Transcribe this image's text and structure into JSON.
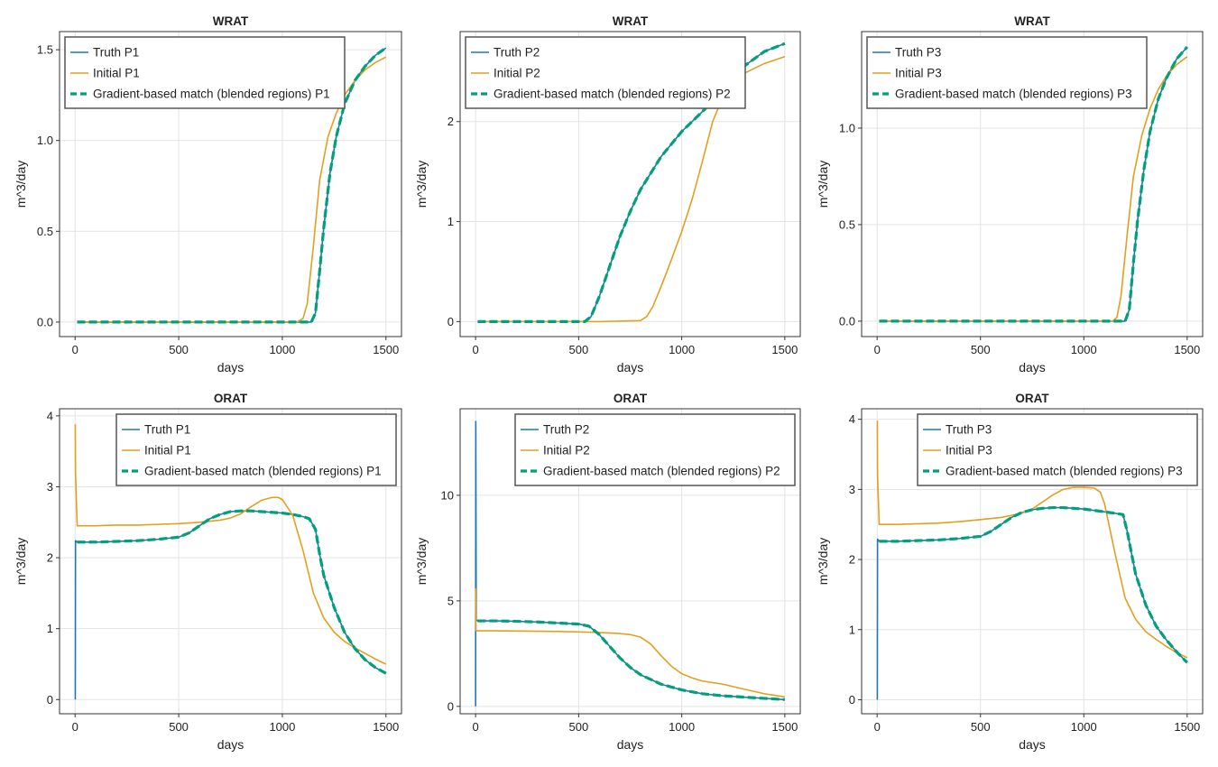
{
  "colors": {
    "truth": "#1f77b4",
    "initial": "#e1a01e",
    "match": "#00a078",
    "grid": "#e3e3e3",
    "frame": "#333333",
    "legend_border": "#555555"
  },
  "chart_data": [
    {
      "type": "line",
      "title": "WRAT",
      "xlabel": "days",
      "ylabel": "m^3/day",
      "xlim": [
        -75,
        1575
      ],
      "ylim": [
        -0.08,
        1.6
      ],
      "xticks": [
        0,
        500,
        1000,
        1500
      ],
      "yticks": [
        0.0,
        0.5,
        1.0,
        1.5
      ],
      "ytick_labels": [
        "0.0",
        "0.5",
        "1.0",
        "1.5"
      ],
      "grid": true,
      "legend_position": "top-left",
      "series": [
        {
          "name": "Truth P1",
          "role": "truth",
          "x": [
            10,
            200,
            400,
            600,
            800,
            1000,
            1100,
            1140,
            1160,
            1180,
            1200,
            1230,
            1260,
            1300,
            1350,
            1400,
            1450,
            1500
          ],
          "y": [
            0,
            0,
            0,
            0,
            0,
            0,
            0,
            0,
            0.05,
            0.28,
            0.52,
            0.82,
            1.02,
            1.2,
            1.33,
            1.41,
            1.47,
            1.51
          ]
        },
        {
          "name": "Initial P1",
          "role": "initial",
          "x": [
            10,
            200,
            400,
            600,
            800,
            1000,
            1070,
            1100,
            1120,
            1150,
            1180,
            1220,
            1260,
            1300,
            1350,
            1400,
            1450,
            1500
          ],
          "y": [
            0,
            0,
            0,
            0,
            0,
            0,
            0,
            0.02,
            0.1,
            0.42,
            0.78,
            1.02,
            1.15,
            1.25,
            1.33,
            1.39,
            1.43,
            1.46
          ]
        },
        {
          "name": "Gradient-based match (blended regions) P1",
          "role": "match",
          "x": [
            10,
            200,
            400,
            600,
            800,
            1000,
            1100,
            1140,
            1160,
            1180,
            1200,
            1230,
            1260,
            1300,
            1350,
            1400,
            1450,
            1500
          ],
          "y": [
            0,
            0,
            0,
            0,
            0,
            0,
            0,
            0,
            0.05,
            0.28,
            0.52,
            0.82,
            1.02,
            1.2,
            1.33,
            1.41,
            1.47,
            1.51
          ]
        }
      ]
    },
    {
      "type": "line",
      "title": "WRAT",
      "xlabel": "days",
      "ylabel": "m^3/day",
      "xlim": [
        -75,
        1575
      ],
      "ylim": [
        -0.15,
        2.9
      ],
      "xticks": [
        0,
        500,
        1000,
        1500
      ],
      "yticks": [
        0,
        1,
        2
      ],
      "ytick_labels": [
        "0",
        "1",
        "2"
      ],
      "grid": true,
      "legend_position": "top-left",
      "series": [
        {
          "name": "Truth P2",
          "role": "truth",
          "x": [
            10,
            200,
            400,
            530,
            560,
            600,
            650,
            700,
            750,
            800,
            900,
            1000,
            1100,
            1200,
            1300,
            1400,
            1500
          ],
          "y": [
            0,
            0,
            0,
            0,
            0.05,
            0.25,
            0.55,
            0.85,
            1.1,
            1.32,
            1.65,
            1.9,
            2.1,
            2.3,
            2.55,
            2.7,
            2.78
          ]
        },
        {
          "name": "Initial P2",
          "role": "initial",
          "x": [
            10,
            200,
            400,
            600,
            800,
            830,
            860,
            900,
            950,
            1000,
            1050,
            1100,
            1150,
            1200,
            1250,
            1300,
            1400,
            1500
          ],
          "y": [
            0,
            0,
            0,
            0,
            0.01,
            0.05,
            0.15,
            0.35,
            0.62,
            0.9,
            1.22,
            1.6,
            2.0,
            2.25,
            2.4,
            2.48,
            2.58,
            2.65
          ]
        },
        {
          "name": "Gradient-based match (blended regions) P2",
          "role": "match",
          "x": [
            10,
            200,
            400,
            530,
            560,
            600,
            650,
            700,
            750,
            800,
            900,
            1000,
            1100,
            1200,
            1300,
            1400,
            1500
          ],
          "y": [
            0,
            0,
            0,
            0,
            0.05,
            0.25,
            0.55,
            0.85,
            1.1,
            1.32,
            1.65,
            1.9,
            2.1,
            2.3,
            2.55,
            2.7,
            2.78
          ]
        }
      ]
    },
    {
      "type": "line",
      "title": "WRAT",
      "xlabel": "days",
      "ylabel": "m^3/day",
      "xlim": [
        -75,
        1575
      ],
      "ylim": [
        -0.08,
        1.5
      ],
      "xticks": [
        0,
        500,
        1000,
        1500
      ],
      "yticks": [
        0.0,
        0.5,
        1.0
      ],
      "ytick_labels": [
        "0.0",
        "0.5",
        "1.0"
      ],
      "grid": true,
      "legend_position": "top-left",
      "series": [
        {
          "name": "Truth P3",
          "role": "truth",
          "x": [
            10,
            200,
            400,
            600,
            800,
            1000,
            1150,
            1200,
            1220,
            1240,
            1260,
            1290,
            1320,
            1360,
            1400,
            1450,
            1500
          ],
          "y": [
            0,
            0,
            0,
            0,
            0,
            0,
            0,
            0,
            0.06,
            0.3,
            0.52,
            0.78,
            0.98,
            1.15,
            1.26,
            1.36,
            1.42
          ]
        },
        {
          "name": "Initial P3",
          "role": "initial",
          "x": [
            10,
            200,
            400,
            600,
            800,
            1000,
            1140,
            1160,
            1180,
            1210,
            1240,
            1280,
            1320,
            1360,
            1400,
            1450,
            1500
          ],
          "y": [
            0,
            0,
            0,
            0,
            0,
            0,
            0,
            0.02,
            0.13,
            0.45,
            0.75,
            0.96,
            1.1,
            1.2,
            1.27,
            1.33,
            1.37
          ]
        },
        {
          "name": "Gradient-based match (blended regions) P3",
          "role": "match",
          "x": [
            10,
            200,
            400,
            600,
            800,
            1000,
            1150,
            1200,
            1220,
            1240,
            1260,
            1290,
            1320,
            1360,
            1400,
            1450,
            1500
          ],
          "y": [
            0,
            0,
            0,
            0,
            0,
            0,
            0,
            0,
            0.06,
            0.3,
            0.52,
            0.78,
            0.98,
            1.15,
            1.26,
            1.36,
            1.42
          ]
        }
      ]
    },
    {
      "type": "line",
      "title": "ORAT",
      "xlabel": "days",
      "ylabel": "m^3/day",
      "xlim": [
        -75,
        1575
      ],
      "ylim": [
        -0.2,
        4.1
      ],
      "xticks": [
        0,
        500,
        1000,
        1500
      ],
      "yticks": [
        0,
        1,
        2,
        3,
        4
      ],
      "ytick_labels": [
        "0",
        "1",
        "2",
        "3",
        "4"
      ],
      "grid": true,
      "legend_position": "top-right",
      "series": [
        {
          "name": "Truth P1",
          "role": "truth",
          "x": [
            1,
            2,
            10,
            100,
            200,
            300,
            400,
            500,
            550,
            600,
            650,
            700,
            750,
            800,
            850,
            900,
            950,
            1000,
            1050,
            1100,
            1130,
            1160,
            1180,
            1200,
            1250,
            1300,
            1350,
            1400,
            1450,
            1500
          ],
          "y": [
            0,
            2.24,
            2.22,
            2.22,
            2.23,
            2.24,
            2.26,
            2.29,
            2.35,
            2.45,
            2.55,
            2.61,
            2.65,
            2.66,
            2.66,
            2.65,
            2.64,
            2.63,
            2.61,
            2.58,
            2.55,
            2.4,
            2.05,
            1.75,
            1.3,
            0.95,
            0.72,
            0.56,
            0.45,
            0.37
          ]
        },
        {
          "name": "Initial P1",
          "role": "initial",
          "x": [
            1,
            2,
            10,
            100,
            200,
            300,
            400,
            500,
            600,
            700,
            750,
            800,
            850,
            900,
            950,
            980,
            1000,
            1050,
            1100,
            1150,
            1200,
            1250,
            1300,
            1350,
            1400,
            1450,
            1500
          ],
          "y": [
            3.88,
            3.2,
            2.45,
            2.45,
            2.46,
            2.46,
            2.47,
            2.48,
            2.5,
            2.53,
            2.56,
            2.62,
            2.72,
            2.81,
            2.85,
            2.85,
            2.82,
            2.6,
            2.1,
            1.5,
            1.15,
            0.95,
            0.82,
            0.73,
            0.65,
            0.57,
            0.5
          ]
        },
        {
          "name": "Gradient-based match (blended regions) P1",
          "role": "match",
          "x": [
            10,
            100,
            200,
            300,
            400,
            500,
            550,
            600,
            650,
            700,
            750,
            800,
            850,
            900,
            950,
            1000,
            1050,
            1100,
            1130,
            1160,
            1180,
            1200,
            1250,
            1300,
            1350,
            1400,
            1450,
            1500
          ],
          "y": [
            2.22,
            2.22,
            2.23,
            2.24,
            2.26,
            2.29,
            2.35,
            2.45,
            2.55,
            2.61,
            2.65,
            2.66,
            2.66,
            2.65,
            2.64,
            2.63,
            2.61,
            2.58,
            2.55,
            2.4,
            2.05,
            1.75,
            1.3,
            0.95,
            0.72,
            0.56,
            0.45,
            0.37
          ]
        }
      ]
    },
    {
      "type": "line",
      "title": "ORAT",
      "xlabel": "days",
      "ylabel": "m^3/day",
      "xlim": [
        -75,
        1575
      ],
      "ylim": [
        -0.35,
        14.1
      ],
      "xticks": [
        0,
        500,
        1000,
        1500
      ],
      "yticks": [
        0,
        5,
        10
      ],
      "ytick_labels": [
        "0",
        "5",
        "10"
      ],
      "grid": true,
      "legend_position": "top-right",
      "series": [
        {
          "name": "Truth P2",
          "role": "truth",
          "x": [
            0,
            1,
            3,
            10,
            100,
            200,
            300,
            400,
            500,
            550,
            600,
            650,
            700,
            750,
            800,
            900,
            1000,
            1100,
            1200,
            1300,
            1400,
            1500
          ],
          "y": [
            0,
            13.5,
            4.1,
            4.05,
            4.05,
            4.03,
            4.0,
            3.95,
            3.9,
            3.8,
            3.4,
            2.85,
            2.3,
            1.85,
            1.5,
            1.05,
            0.78,
            0.6,
            0.5,
            0.44,
            0.38,
            0.32
          ]
        },
        {
          "name": "Initial P2",
          "role": "initial",
          "x": [
            0,
            2,
            5,
            100,
            200,
            300,
            400,
            500,
            600,
            700,
            750,
            800,
            850,
            900,
            950,
            1000,
            1050,
            1100,
            1200,
            1300,
            1400,
            1500
          ],
          "y": [
            5.6,
            3.6,
            3.58,
            3.58,
            3.57,
            3.56,
            3.55,
            3.53,
            3.5,
            3.45,
            3.4,
            3.28,
            2.95,
            2.4,
            1.9,
            1.55,
            1.35,
            1.2,
            1.05,
            0.82,
            0.6,
            0.45
          ]
        },
        {
          "name": "Gradient-based match (blended regions) P2",
          "role": "match",
          "x": [
            10,
            100,
            200,
            300,
            400,
            500,
            550,
            600,
            650,
            700,
            750,
            800,
            900,
            1000,
            1100,
            1200,
            1300,
            1400,
            1500
          ],
          "y": [
            4.05,
            4.05,
            4.03,
            4.0,
            3.95,
            3.9,
            3.8,
            3.4,
            2.85,
            2.3,
            1.85,
            1.5,
            1.05,
            0.78,
            0.6,
            0.5,
            0.44,
            0.38,
            0.32
          ]
        }
      ]
    },
    {
      "type": "line",
      "title": "ORAT",
      "xlabel": "days",
      "ylabel": "m^3/day",
      "xlim": [
        -75,
        1575
      ],
      "ylim": [
        -0.2,
        4.15
      ],
      "xticks": [
        0,
        500,
        1000,
        1500
      ],
      "yticks": [
        0,
        1,
        2,
        3,
        4
      ],
      "ytick_labels": [
        "0",
        "1",
        "2",
        "3",
        "4"
      ],
      "grid": true,
      "legend_position": "top-right",
      "series": [
        {
          "name": "Truth P3",
          "role": "truth",
          "x": [
            1,
            2,
            10,
            100,
            200,
            300,
            400,
            500,
            550,
            600,
            650,
            700,
            750,
            800,
            850,
            900,
            950,
            1000,
            1050,
            1100,
            1150,
            1190,
            1210,
            1250,
            1300,
            1350,
            1400,
            1450,
            1500
          ],
          "y": [
            0,
            2.29,
            2.26,
            2.26,
            2.27,
            2.28,
            2.3,
            2.33,
            2.4,
            2.5,
            2.6,
            2.67,
            2.71,
            2.73,
            2.74,
            2.74,
            2.73,
            2.72,
            2.7,
            2.68,
            2.66,
            2.64,
            2.4,
            1.8,
            1.35,
            1.05,
            0.85,
            0.68,
            0.53
          ]
        },
        {
          "name": "Initial P3",
          "role": "initial",
          "x": [
            1,
            2,
            10,
            100,
            200,
            300,
            400,
            500,
            600,
            700,
            750,
            800,
            850,
            900,
            950,
            1000,
            1050,
            1080,
            1100,
            1150,
            1200,
            1250,
            1300,
            1350,
            1400,
            1450,
            1500
          ],
          "y": [
            3.98,
            3.2,
            2.5,
            2.5,
            2.51,
            2.52,
            2.54,
            2.57,
            2.6,
            2.66,
            2.72,
            2.82,
            2.92,
            3.0,
            3.03,
            3.03,
            3.02,
            2.96,
            2.8,
            2.1,
            1.45,
            1.15,
            0.97,
            0.86,
            0.76,
            0.67,
            0.6
          ]
        },
        {
          "name": "Gradient-based match (blended regions) P3",
          "role": "match",
          "x": [
            10,
            100,
            200,
            300,
            400,
            500,
            550,
            600,
            650,
            700,
            750,
            800,
            850,
            900,
            950,
            1000,
            1050,
            1100,
            1150,
            1190,
            1210,
            1250,
            1300,
            1350,
            1400,
            1450,
            1500
          ],
          "y": [
            2.26,
            2.26,
            2.27,
            2.28,
            2.3,
            2.33,
            2.4,
            2.5,
            2.6,
            2.67,
            2.71,
            2.73,
            2.74,
            2.74,
            2.73,
            2.72,
            2.7,
            2.68,
            2.66,
            2.64,
            2.4,
            1.8,
            1.35,
            1.05,
            0.85,
            0.68,
            0.53
          ]
        }
      ]
    }
  ]
}
